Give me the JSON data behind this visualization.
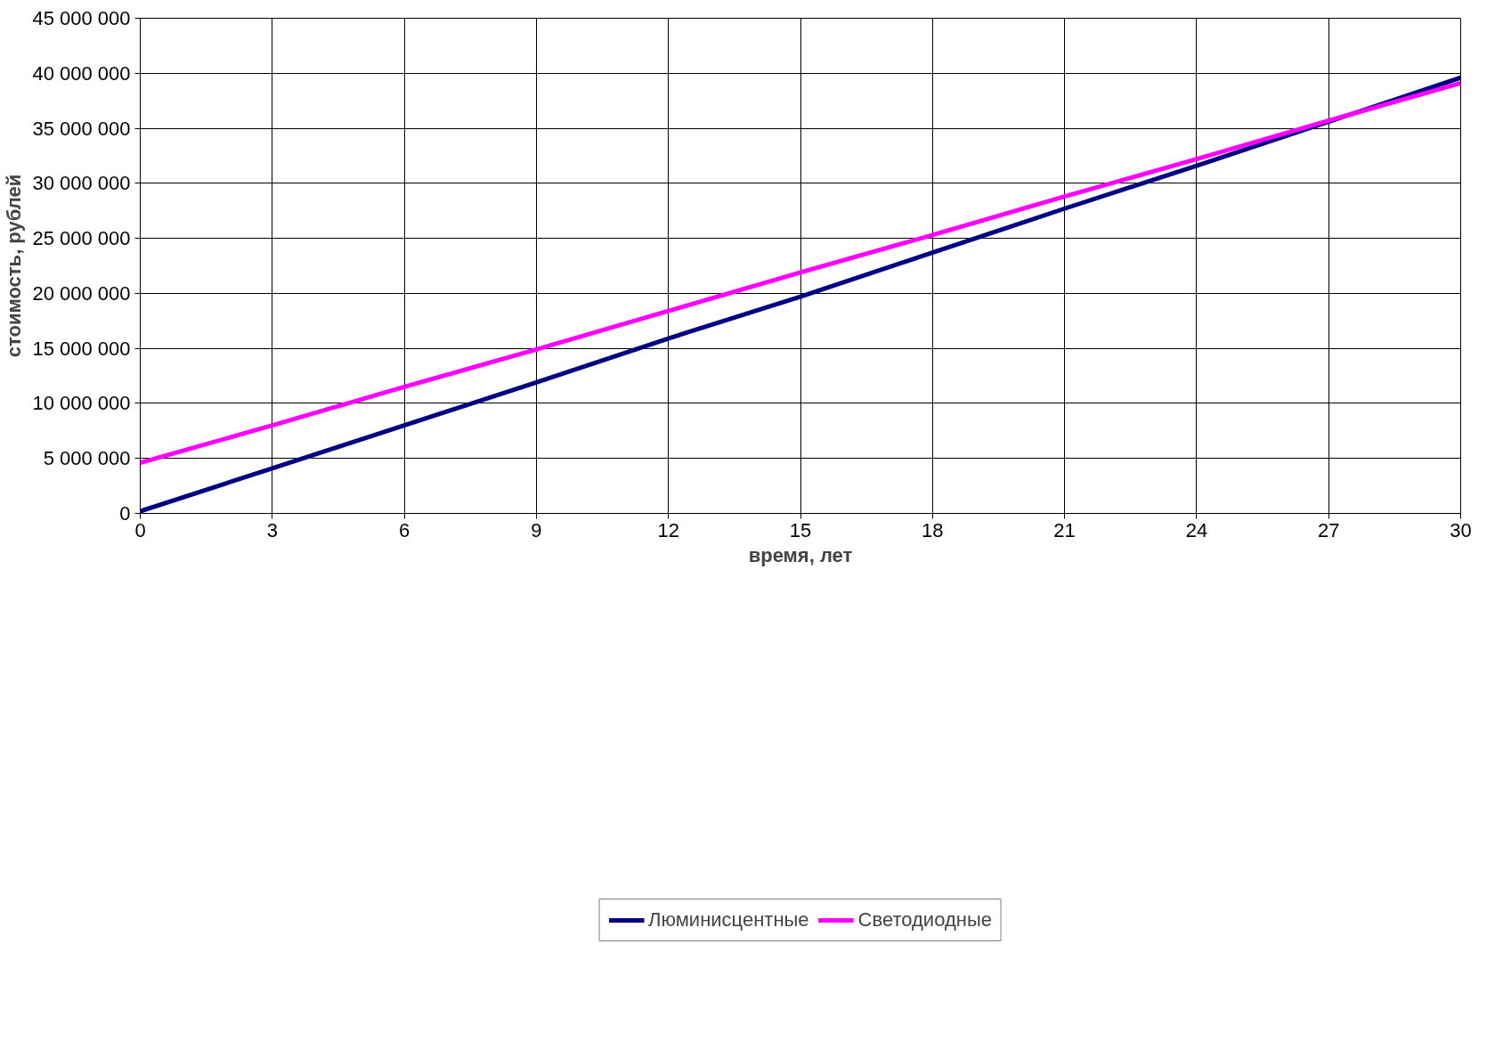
{
  "chart_data": {
    "type": "line",
    "xlabel": "время, лет",
    "ylabel": "стоимость, рублей",
    "x": [
      0,
      3,
      6,
      9,
      12,
      15,
      18,
      21,
      24,
      27,
      30
    ],
    "series": [
      {
        "name": "Люминисцентные",
        "color": "#000080",
        "values": [
          200000,
          4100000,
          8000000,
          11900000,
          15900000,
          19700000,
          23700000,
          27700000,
          31600000,
          35600000,
          39600000
        ]
      },
      {
        "name": "Светодиодные",
        "color": "#ff00ff",
        "values": [
          4600000,
          8000000,
          11500000,
          14900000,
          18400000,
          21900000,
          25300000,
          28800000,
          32200000,
          35700000,
          39100000
        ]
      }
    ],
    "xlim": [
      0,
      30
    ],
    "xticks": [
      0,
      3,
      6,
      9,
      12,
      15,
      18,
      21,
      24,
      27,
      30
    ],
    "ylim": [
      0,
      45000000
    ],
    "yticks": [
      0,
      {
        "value": 5000000,
        "label": "5 000 000"
      },
      {
        "value": 10000000,
        "label": "10 000 000"
      },
      {
        "value": 15000000,
        "label": "15 000 000"
      },
      {
        "value": 20000000,
        "label": "20 000 000"
      },
      {
        "value": 25000000,
        "label": "25 000 000"
      },
      {
        "value": 30000000,
        "label": "30 000 000"
      },
      {
        "value": 35000000,
        "label": "35 000 000"
      },
      {
        "value": 40000000,
        "label": "40 000 000"
      },
      {
        "value": 45000000,
        "label": "45 000 000"
      }
    ],
    "grid": true,
    "legend": "bottom",
    "marker": "none",
    "line_style": "solid"
  }
}
